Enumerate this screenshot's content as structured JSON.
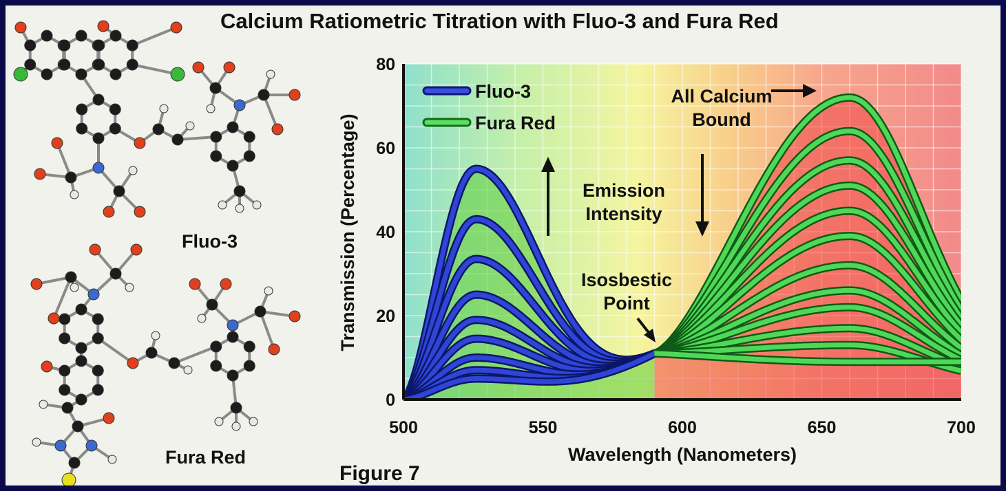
{
  "chart_data": {
    "type": "line",
    "title": "Calcium Ratiometric Titration with Fluo-3 and Fura Red",
    "xlabel": "Wavelength (Nanometers)",
    "ylabel": "Transmission (Percentage)",
    "xlim": [
      500,
      700
    ],
    "ylim": [
      0,
      80
    ],
    "x_ticks": [
      500,
      550,
      600,
      650,
      700
    ],
    "y_ticks": [
      0,
      20,
      40,
      60,
      80
    ],
    "grid": true,
    "legend_position": "top-left",
    "isosbestic_point": {
      "x": 590,
      "y": 11
    },
    "series": [
      {
        "name": "Fluo-3",
        "color": "#1f2fb0",
        "peak_x": 526,
        "peak_values": [
          55,
          43,
          33.5,
          25,
          19,
          14.5,
          10,
          7,
          5
        ]
      },
      {
        "name": "Fura Red",
        "color": "#2ec83a",
        "peak_x": 660,
        "peak_values": [
          72,
          64,
          57,
          51,
          45,
          39,
          32,
          26,
          22,
          17,
          13,
          9
        ]
      }
    ],
    "annotations": {
      "all_calcium_bound": [
        "All Calcium",
        "Bound"
      ],
      "emission_intensity": [
        "Emission",
        "Intensity"
      ],
      "isosbestic": [
        "Isosbestic",
        "Point"
      ]
    }
  },
  "molecules": {
    "fluo3_label": "Fluo-3",
    "fura_red_label": "Fura Red"
  },
  "figure_label": "Figure 7"
}
